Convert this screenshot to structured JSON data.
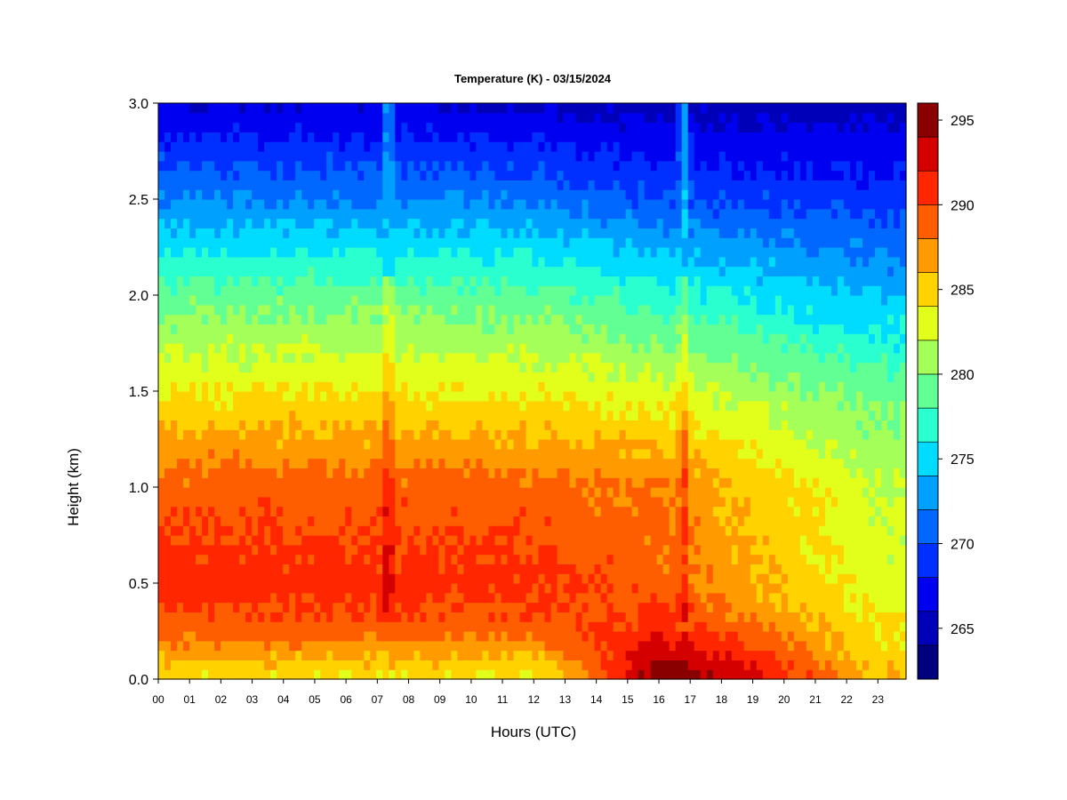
{
  "chart_data": {
    "type": "heatmap",
    "title": "Temperature (K) - 03/15/2024",
    "xlabel": "Hours (UTC)",
    "ylabel": "Height (km)",
    "x_ticks": [
      "00",
      "01",
      "02",
      "03",
      "04",
      "05",
      "06",
      "07",
      "08",
      "09",
      "10",
      "11",
      "12",
      "13",
      "14",
      "15",
      "16",
      "17",
      "18",
      "19",
      "20",
      "21",
      "22",
      "23"
    ],
    "xlim": [
      0,
      23.9
    ],
    "ylim": [
      0,
      3.0
    ],
    "y_ticks": [
      0.0,
      0.5,
      1.0,
      1.5,
      2.0,
      2.5,
      3.0
    ],
    "y_tick_labels": [
      "0.0",
      "0.5",
      "1.0",
      "1.5",
      "2.0",
      "2.5",
      "3.0"
    ],
    "colorbar": {
      "ticks": [
        265,
        270,
        275,
        280,
        285,
        290,
        295
      ],
      "tick_labels": [
        "265",
        "270",
        "275",
        "280",
        "285",
        "290",
        "295"
      ],
      "levels": [
        262,
        264,
        266,
        268,
        270,
        272,
        274,
        276,
        278,
        280,
        282,
        284,
        286,
        288,
        290,
        292,
        294,
        296
      ],
      "colors": [
        "#00007f",
        "#0000b8",
        "#0000f0",
        "#0030ff",
        "#0068ff",
        "#00a0ff",
        "#00dcff",
        "#2affd0",
        "#62ff94",
        "#a4ff58",
        "#e2ff1c",
        "#ffd200",
        "#ff9a00",
        "#ff5e00",
        "#ff2600",
        "#d40000",
        "#8a0000"
      ]
    },
    "profile_description_points": {
      "height_km": [
        0.0,
        0.25,
        0.5,
        1.0,
        1.5,
        2.0,
        2.5,
        3.0
      ],
      "temperature_k_at_04utc": [
        284,
        289,
        291,
        289,
        284,
        279,
        272,
        266
      ],
      "temperature_k_at_16utc": [
        294,
        291,
        289,
        288,
        283,
        277,
        270,
        265
      ],
      "temperature_k_at_23utc": [
        286,
        284,
        283,
        282,
        279,
        274,
        269,
        265
      ]
    },
    "vertical_streaks_hours": [
      7.35,
      16.8
    ]
  }
}
